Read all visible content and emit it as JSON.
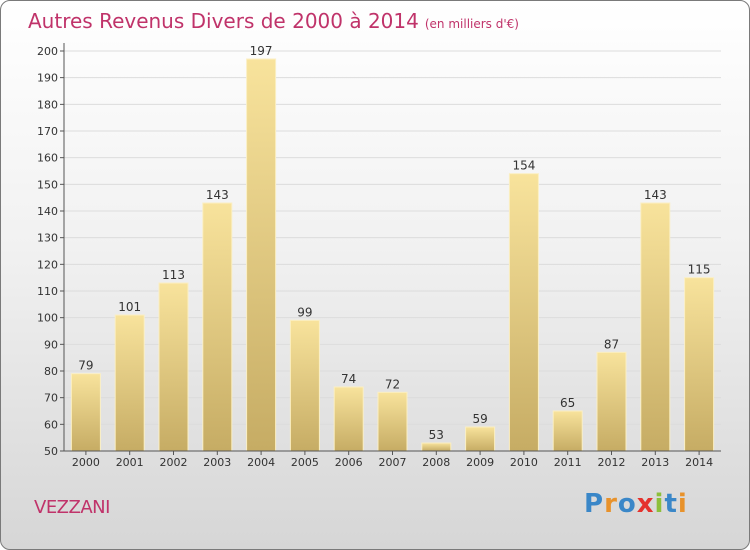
{
  "title": "Autres Revenus Divers de 2000 à 2014",
  "subtitle": "(en milliers d'€)",
  "town": "VEZZANI",
  "logo": {
    "text": "Proxiti",
    "colors": [
      "#3a87c8",
      "#e8922b",
      "#3a87c8",
      "#e5322d",
      "#8dbf3b",
      "#3a87c8",
      "#e8922b"
    ]
  },
  "colors": {
    "title": "#c0336a",
    "bar_top": "#f8e39c",
    "bar_bottom": "#c6ac64"
  },
  "chart_data": {
    "type": "bar",
    "categories": [
      "2000",
      "2001",
      "2002",
      "2003",
      "2004",
      "2005",
      "2006",
      "2007",
      "2008",
      "2009",
      "2010",
      "2011",
      "2012",
      "2013",
      "2014"
    ],
    "values": [
      79,
      101,
      113,
      143,
      197,
      99,
      74,
      72,
      53,
      59,
      154,
      65,
      87,
      143,
      115
    ],
    "ylim": [
      50,
      200
    ],
    "yticks": [
      50,
      60,
      70,
      80,
      90,
      100,
      110,
      120,
      130,
      140,
      150,
      160,
      170,
      180,
      190,
      200
    ],
    "data_labels": true
  }
}
